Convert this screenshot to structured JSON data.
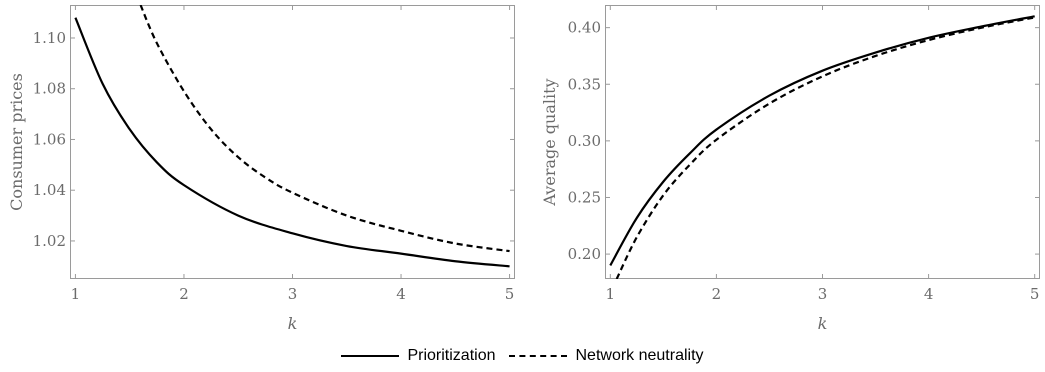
{
  "chart_data": [
    {
      "type": "line",
      "xlabel": "k",
      "ylabel": "Consumer prices",
      "xlim": [
        0.95,
        5.05
      ],
      "ylim": [
        1.005,
        1.113
      ],
      "xticks": [
        1,
        2,
        3,
        4,
        5
      ],
      "xtick_labels": [
        "1",
        "2",
        "3",
        "4",
        "5"
      ],
      "yticks": [
        1.02,
        1.04,
        1.06,
        1.08,
        1.1
      ],
      "ytick_labels": [
        "1.02",
        "1.04",
        "1.06",
        "1.08",
        "1.10"
      ],
      "series": [
        {
          "name": "Prioritization",
          "style": "solid",
          "x": [
            1.0,
            1.25,
            1.5,
            1.75,
            2.0,
            2.5,
            3.0,
            3.5,
            4.0,
            4.5,
            5.0
          ],
          "y": [
            1.108,
            1.082,
            1.064,
            1.051,
            1.042,
            1.03,
            1.023,
            1.018,
            1.015,
            1.012,
            1.01
          ]
        },
        {
          "name": "Network neutrality",
          "style": "dashed",
          "x": [
            1.6,
            1.75,
            2.0,
            2.25,
            2.5,
            2.75,
            3.0,
            3.5,
            4.0,
            4.5,
            5.0
          ],
          "y": [
            1.113,
            1.098,
            1.079,
            1.064,
            1.053,
            1.045,
            1.039,
            1.03,
            1.024,
            1.019,
            1.016
          ]
        }
      ]
    },
    {
      "type": "line",
      "xlabel": "k",
      "ylabel": "Average quality",
      "xlim": [
        0.95,
        5.05
      ],
      "ylim": [
        0.178,
        0.42
      ],
      "xticks": [
        1,
        2,
        3,
        4,
        5
      ],
      "xtick_labels": [
        "1",
        "2",
        "3",
        "4",
        "5"
      ],
      "yticks": [
        0.2,
        0.25,
        0.3,
        0.35,
        0.4
      ],
      "ytick_labels": [
        "0.20",
        "0.25",
        "0.30",
        "0.35",
        "0.40"
      ],
      "series": [
        {
          "name": "Prioritization",
          "style": "solid",
          "x": [
            1.0,
            1.25,
            1.5,
            1.75,
            2.0,
            2.5,
            3.0,
            3.5,
            4.0,
            4.5,
            5.0
          ],
          "y": [
            0.19,
            0.232,
            0.264,
            0.289,
            0.31,
            0.34,
            0.362,
            0.378,
            0.391,
            0.401,
            0.41
          ]
        },
        {
          "name": "Network neutrality",
          "style": "dashed",
          "x": [
            1.06,
            1.25,
            1.5,
            1.75,
            2.0,
            2.5,
            3.0,
            3.5,
            4.0,
            4.5,
            5.0
          ],
          "y": [
            0.178,
            0.215,
            0.252,
            0.279,
            0.301,
            0.333,
            0.357,
            0.375,
            0.389,
            0.4,
            0.409
          ]
        }
      ]
    }
  ],
  "legend": {
    "items": [
      {
        "label": "Prioritization",
        "style": "solid"
      },
      {
        "label": "Network neutrality",
        "style": "dashed"
      }
    ]
  }
}
